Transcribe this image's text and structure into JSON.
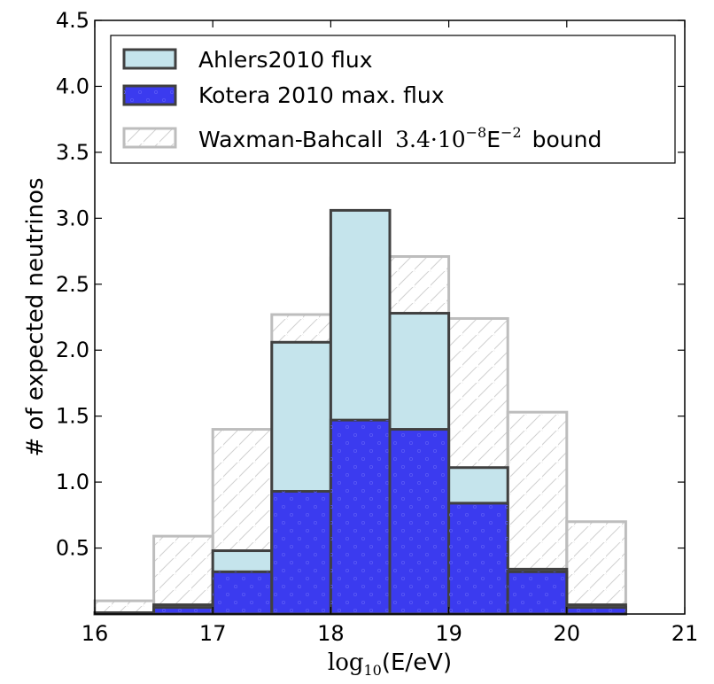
{
  "chart_data": {
    "type": "bar",
    "bin_edges": [
      16,
      16.5,
      17,
      17.5,
      18,
      18.5,
      19,
      19.5,
      20,
      20.5
    ],
    "series": [
      {
        "name": "Waxman-Bahcall",
        "name_math": "3.4·10",
        "name_exp": "−8",
        "name_e": "E",
        "name_eexp": "−2",
        "name_suffix": "bound",
        "values": [
          0.1,
          0.59,
          1.4,
          2.27,
          2.7,
          2.71,
          2.24,
          1.53,
          0.7
        ],
        "color": "#ffffff",
        "edge_color": "#bdbdbd",
        "hatch": "diagonal"
      },
      {
        "name": "Ahlers2010 flux",
        "values": [
          0.01,
          0.07,
          0.48,
          2.06,
          3.06,
          2.28,
          1.11,
          0.34,
          0.07
        ],
        "color": "#c5e4ec",
        "edge_color": "#404040"
      },
      {
        "name": "Kotera 2010 max. flux",
        "values": [
          0.005,
          0.05,
          0.32,
          0.93,
          1.47,
          1.4,
          0.84,
          0.32,
          0.05
        ],
        "color": "#3b3bef",
        "edge_color": "#404040",
        "hatch": "dots"
      }
    ],
    "xlim": [
      16,
      21
    ],
    "ylim": [
      0,
      4.5
    ],
    "x_ticks": [
      "16",
      "17",
      "18",
      "19",
      "20",
      "21"
    ],
    "y_ticks": [
      "0.5",
      "1.0",
      "1.5",
      "2.0",
      "2.5",
      "3.0",
      "3.5",
      "4.0",
      "4.5"
    ],
    "ylabel": "# of expected neutrinos",
    "xlabel_main": "log",
    "xlabel_sub": "10",
    "xlabel_arg": "(E/eV)",
    "legend": "top-left",
    "grid": false
  }
}
